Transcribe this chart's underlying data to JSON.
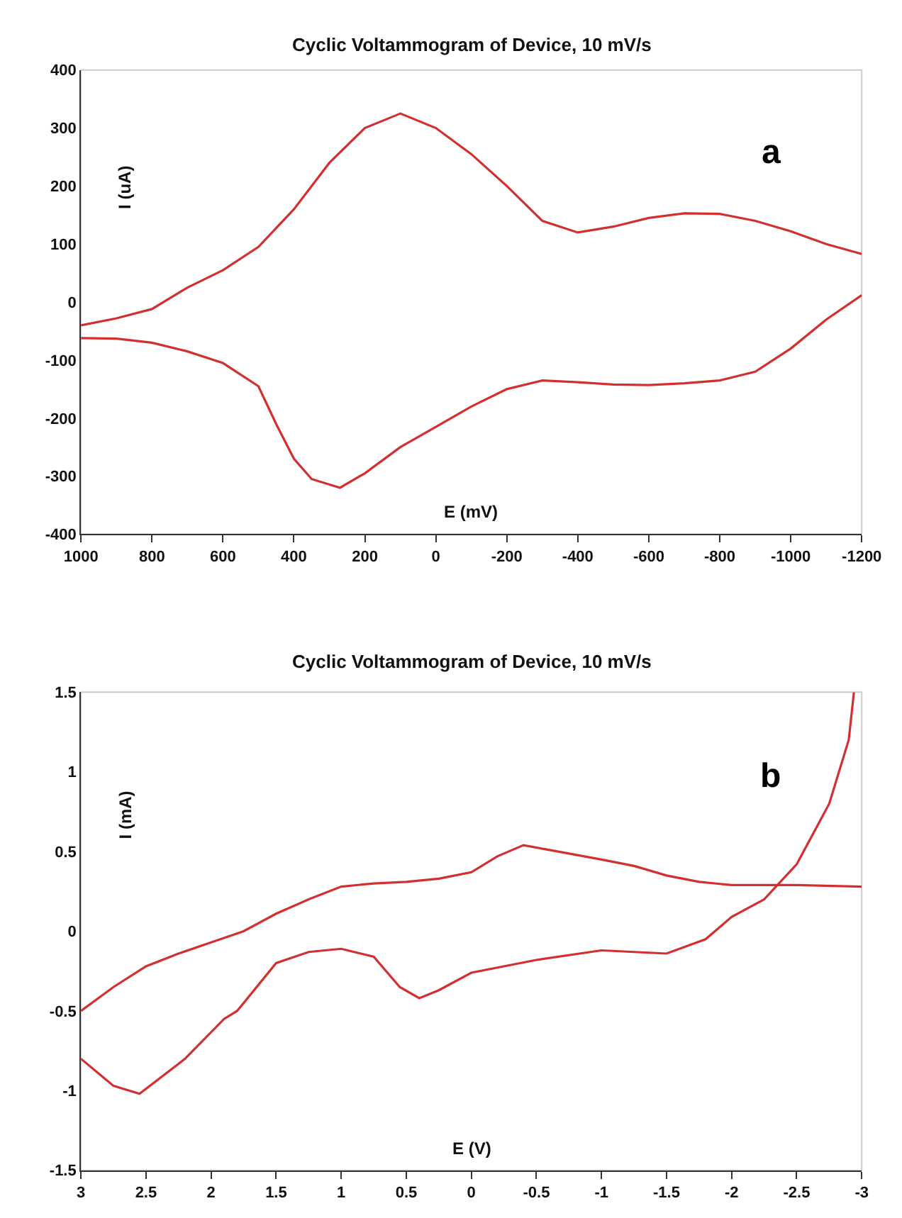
{
  "chart_data": [
    {
      "type": "line",
      "title": "Cyclic Voltammogram of Device, 10 mV/s",
      "xlabel": "E (mV)",
      "ylabel": "I (uA)",
      "annotations": [
        "a"
      ],
      "xlim": [
        1000,
        -1200
      ],
      "xticks": [
        1000,
        800,
        600,
        400,
        200,
        0,
        -200,
        -400,
        -600,
        -800,
        -1000,
        -1200
      ],
      "ylim": [
        -400,
        400
      ],
      "yticks": [
        -400,
        -300,
        -200,
        -100,
        0,
        100,
        200,
        300,
        400
      ],
      "grid": false,
      "series": [
        {
          "color": "#d32f2f",
          "x": [
            1000,
            900,
            800,
            700,
            600,
            500,
            400,
            300,
            200,
            100,
            0,
            -100,
            -200,
            -300,
            -400,
            -500,
            -600,
            -700,
            -800,
            -900,
            -1000,
            -1100,
            -1200
          ],
          "values": [
            -40,
            -28,
            -12,
            25,
            55,
            95,
            160,
            240,
            300,
            325,
            300,
            255,
            200,
            140,
            120,
            130,
            145,
            153,
            152,
            140,
            122,
            100,
            83
          ]
        },
        {
          "color": "#d32f2f",
          "x": [
            -1200,
            -1100,
            -1000,
            -900,
            -800,
            -700,
            -600,
            -500,
            -400,
            -300,
            -200,
            -100,
            0,
            100,
            200,
            270,
            350,
            400,
            450,
            500,
            600,
            700,
            800,
            900,
            1000
          ],
          "values": [
            12,
            -30,
            -80,
            -120,
            -135,
            -140,
            -143,
            -142,
            -138,
            -135,
            -150,
            -180,
            -215,
            -250,
            -295,
            -320,
            -305,
            -270,
            -210,
            -145,
            -105,
            -85,
            -70,
            -63,
            -62
          ]
        }
      ]
    },
    {
      "type": "line",
      "title": "Cyclic Voltammogram of Device, 10 mV/s",
      "xlabel": "E (V)",
      "ylabel": "I (mA)",
      "annotations": [
        "b"
      ],
      "xlim": [
        3,
        -3
      ],
      "xticks": [
        3,
        2.5,
        2,
        1.5,
        1,
        0.5,
        0,
        -0.5,
        -1,
        -1.5,
        -2,
        -2.5,
        -3
      ],
      "ylim": [
        -1.5,
        1.5
      ],
      "yticks": [
        -1.5,
        -1,
        -0.5,
        0,
        0.5,
        1,
        1.5
      ],
      "grid": false,
      "series": [
        {
          "color": "#d32f2f",
          "x": [
            -2.94,
            -2.9,
            -2.75,
            -2.5,
            -2.25,
            -2,
            -1.8,
            -1.5,
            -1,
            -0.5,
            0,
            0.25,
            0.4,
            0.55,
            0.75,
            1,
            1.25,
            1.5,
            1.8,
            1.9,
            2.2,
            2.55,
            2.75,
            3
          ],
          "values": [
            1.5,
            1.2,
            0.8,
            0.42,
            0.2,
            0.09,
            -0.05,
            -0.14,
            -0.12,
            -0.18,
            -0.26,
            -0.37,
            -0.42,
            -0.35,
            -0.16,
            -0.11,
            -0.13,
            -0.2,
            -0.5,
            -0.55,
            -0.8,
            -1.02,
            -0.97,
            -0.8
          ]
        },
        {
          "color": "#d32f2f",
          "x": [
            3,
            2.75,
            2.5,
            2.25,
            2,
            1.75,
            1.5,
            1.25,
            1,
            0.75,
            0.5,
            0.25,
            0,
            -0.2,
            -0.4,
            -0.6,
            -1,
            -1.25,
            -1.5,
            -1.75,
            -2,
            -2.5,
            -3
          ],
          "values": [
            -0.5,
            -0.35,
            -0.22,
            -0.14,
            -0.07,
            0,
            0.11,
            0.2,
            0.28,
            0.3,
            0.31,
            0.33,
            0.37,
            0.47,
            0.54,
            0.51,
            0.45,
            0.41,
            0.35,
            0.31,
            0.29,
            0.29,
            0.28
          ]
        }
      ]
    }
  ]
}
